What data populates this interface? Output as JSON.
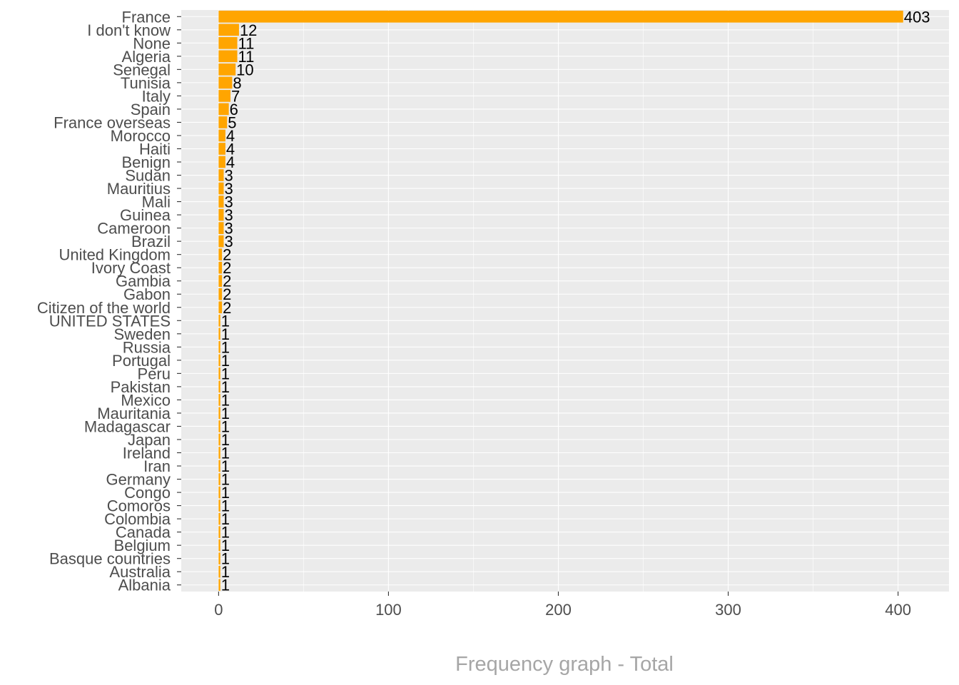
{
  "chart_data": {
    "type": "bar",
    "orientation": "horizontal",
    "xlabel": "Frequency graph - Total",
    "ylabel": "",
    "xlim": [
      -22,
      430
    ],
    "x_ticks": [
      0,
      100,
      200,
      300,
      400
    ],
    "x_minor_ticks": [
      50,
      150,
      250,
      350
    ],
    "grid": true,
    "bar_color": "#FFA500",
    "panel_color": "#EBEBEB",
    "categories": [
      "France",
      "I don't know",
      "None",
      "Algeria",
      "Senegal",
      "Tunisia",
      "Italy",
      "Spain",
      "France overseas",
      "Morocco",
      "Haiti",
      "Benign",
      "Sudan",
      "Mauritius",
      "Mali",
      "Guinea",
      "Cameroon",
      "Brazil",
      "United Kingdom",
      "Ivory Coast",
      "Gambia",
      "Gabon",
      "Citizen of the world",
      "UNITED STATES",
      "Sweden",
      "Russia",
      "Portugal",
      "Peru",
      "Pakistan",
      "Mexico",
      "Mauritania",
      "Madagascar",
      "Japan",
      "Ireland",
      "Iran",
      "Germany",
      "Congo",
      "Comoros",
      "Colombia",
      "Canada",
      "Belgium",
      "Basque countries",
      "Australia",
      "Albania"
    ],
    "values": [
      403,
      12,
      11,
      11,
      10,
      8,
      7,
      6,
      5,
      4,
      4,
      4,
      3,
      3,
      3,
      3,
      3,
      3,
      2,
      2,
      2,
      2,
      2,
      1,
      1,
      1,
      1,
      1,
      1,
      1,
      1,
      1,
      1,
      1,
      1,
      1,
      1,
      1,
      1,
      1,
      1,
      1,
      1,
      1
    ]
  }
}
